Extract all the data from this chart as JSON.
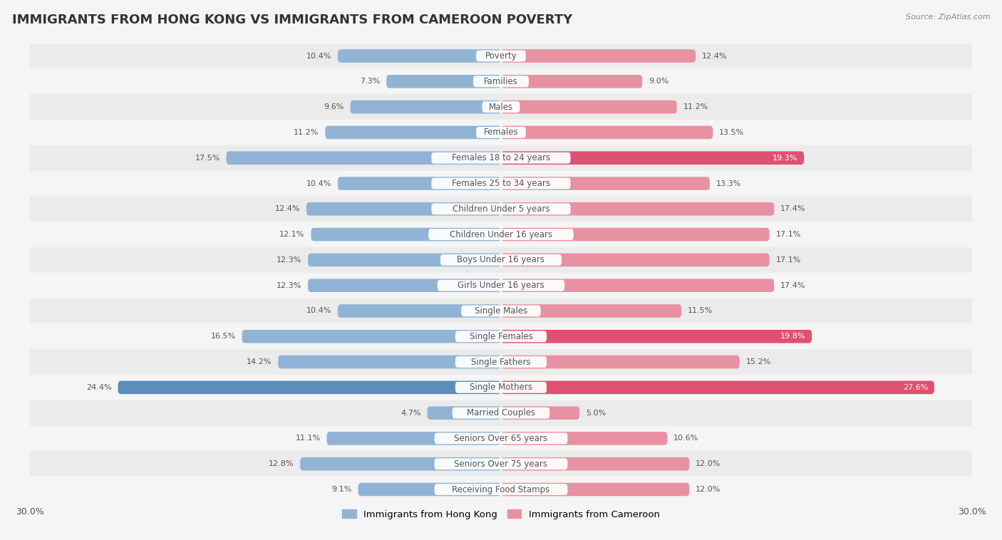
{
  "title": "IMMIGRANTS FROM HONG KONG VS IMMIGRANTS FROM CAMEROON POVERTY",
  "source": "Source: ZipAtlas.com",
  "categories": [
    "Poverty",
    "Families",
    "Males",
    "Females",
    "Females 18 to 24 years",
    "Females 25 to 34 years",
    "Children Under 5 years",
    "Children Under 16 years",
    "Boys Under 16 years",
    "Girls Under 16 years",
    "Single Males",
    "Single Females",
    "Single Fathers",
    "Single Mothers",
    "Married Couples",
    "Seniors Over 65 years",
    "Seniors Over 75 years",
    "Receiving Food Stamps"
  ],
  "hong_kong": [
    10.4,
    7.3,
    9.6,
    11.2,
    17.5,
    10.4,
    12.4,
    12.1,
    12.3,
    12.3,
    10.4,
    16.5,
    14.2,
    24.4,
    4.7,
    11.1,
    12.8,
    9.1
  ],
  "cameroon": [
    12.4,
    9.0,
    11.2,
    13.5,
    19.3,
    13.3,
    17.4,
    17.1,
    17.1,
    17.4,
    11.5,
    19.8,
    15.2,
    27.6,
    5.0,
    10.6,
    12.0,
    12.0
  ],
  "hk_color": "#91b4d5",
  "cam_color": "#e891a3",
  "hk_highlight_color": "#5d8db8",
  "cam_highlight_color": "#e05070",
  "axis_max": 30.0,
  "legend_hk": "Immigrants from Hong Kong",
  "legend_cam": "Immigrants from Cameroon",
  "bg_color": "#f5f5f5",
  "row_odd_color": "#ebebeb",
  "row_even_color": "#f5f5f5",
  "title_fontsize": 13,
  "label_fontsize": 8.5,
  "bar_height": 0.52,
  "value_label_fontsize": 8.0
}
